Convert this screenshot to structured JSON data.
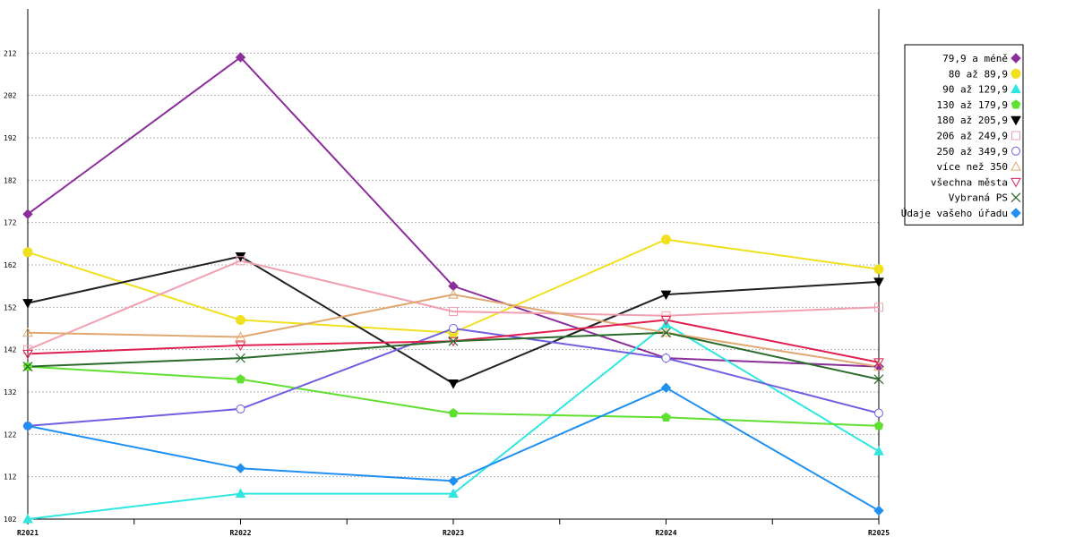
{
  "chart_data": {
    "type": "line",
    "categories": [
      "R2021",
      "R2022",
      "R2023",
      "R2024",
      "R2025"
    ],
    "ylim": [
      102,
      222
    ],
    "y_ticks": [
      102,
      112,
      122,
      132,
      142,
      152,
      162,
      172,
      182,
      192,
      202,
      212
    ],
    "grid": "horizontal dashed",
    "legend_position": "right",
    "series": [
      {
        "name": "79,9 a méně",
        "color": "#8b2e9a",
        "marker": "diamond",
        "values": [
          174,
          211,
          157,
          140,
          138
        ]
      },
      {
        "name": "80 až 89,9",
        "color": "#f0e020",
        "marker": "circle-filled",
        "values": [
          165,
          149,
          146,
          168,
          161
        ]
      },
      {
        "name": "90 až 129,9",
        "color": "#30e6e0",
        "marker": "triangle-up-filled",
        "values": [
          102,
          108,
          108,
          148,
          118
        ]
      },
      {
        "name": "130 až 179,9",
        "color": "#60e030",
        "marker": "pentagon-filled",
        "values": [
          138,
          135,
          127,
          126,
          124
        ]
      },
      {
        "name": "180 až 205,9",
        "color": "#000000",
        "line_color": "#222222",
        "marker": "triangle-down-filled",
        "values": [
          153,
          164,
          134,
          155,
          158
        ]
      },
      {
        "name": "206 až 249,9",
        "color": "#f0a0b0",
        "marker": "square-open",
        "values": [
          142,
          163,
          151,
          150,
          152
        ]
      },
      {
        "name": "250 až 349,9",
        "color": "#7060e0",
        "marker": "circle-open",
        "values": [
          124,
          128,
          147,
          140,
          127
        ]
      },
      {
        "name": "více než 350",
        "color": "#e0a870",
        "marker": "triangle-up-open",
        "values": [
          146,
          145,
          155,
          146,
          138
        ]
      },
      {
        "name": "všechna města",
        "color": "#e02050",
        "marker": "triangle-down-open",
        "values": [
          141,
          143,
          144,
          149,
          139
        ]
      },
      {
        "name": "Vybraná PS",
        "color": "#2a6a2a",
        "marker": "x",
        "values": [
          138,
          140,
          144,
          146,
          135
        ]
      },
      {
        "name": "Údaje vašeho úřadu",
        "color": "#2090f0",
        "marker": "diamond",
        "values": [
          124,
          114,
          111,
          133,
          104
        ]
      }
    ]
  }
}
